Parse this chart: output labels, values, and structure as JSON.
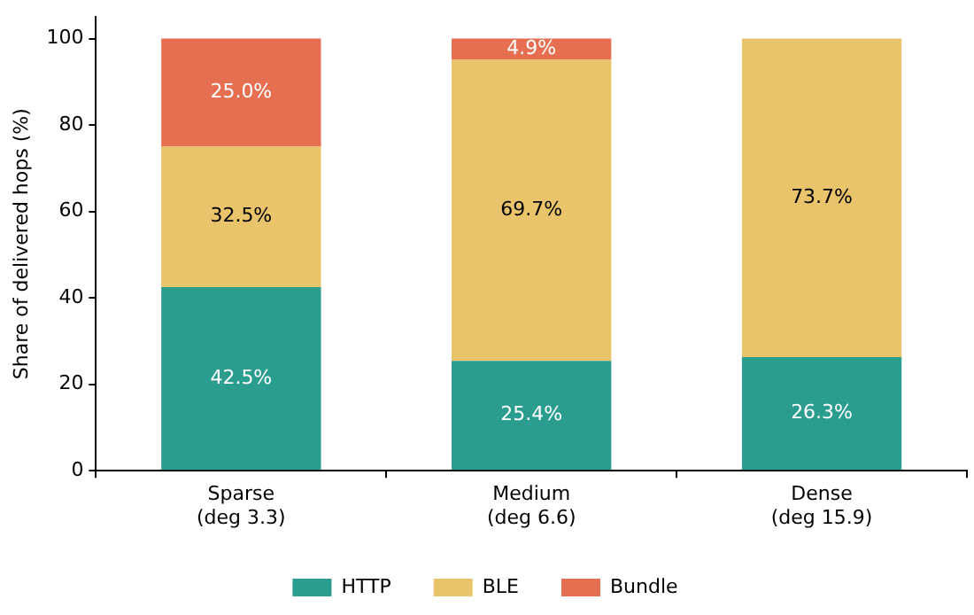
{
  "chart_data": {
    "type": "bar",
    "stacked": true,
    "ylabel": "Share of delivered hops (%)",
    "categories": [
      "Sparse\n(deg 3.3)",
      "Medium\n(deg 6.6)",
      "Dense\n(deg 15.9)"
    ],
    "series": [
      {
        "name": "HTTP",
        "color": "#2a9d8f",
        "values": [
          42.5,
          25.4,
          26.3
        ],
        "value_labels": [
          "42.5%",
          "25.4%",
          "26.3%"
        ]
      },
      {
        "name": "BLE",
        "color": "#e9c46a",
        "values": [
          32.5,
          69.7,
          73.7
        ],
        "value_labels": [
          "32.5%",
          "69.7%",
          "73.7%"
        ]
      },
      {
        "name": "Bundle",
        "color": "#e76f51",
        "values": [
          25.0,
          4.9,
          0
        ],
        "value_labels": [
          "25.0%",
          "4.9%",
          null
        ]
      }
    ],
    "ylim": [
      0,
      105
    ],
    "yticks": [
      0,
      20,
      40,
      60,
      80,
      100
    ],
    "grid": false,
    "legend": "bottom"
  }
}
